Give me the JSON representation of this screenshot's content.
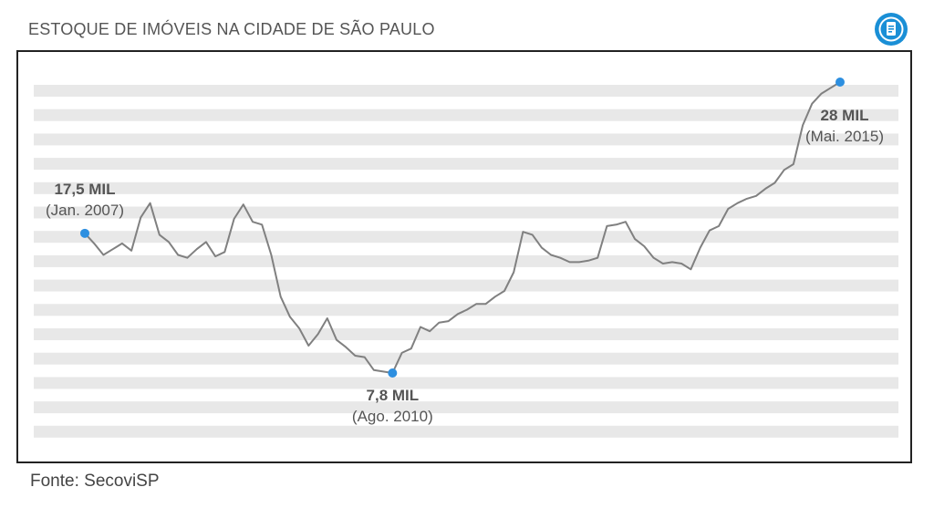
{
  "header": {
    "title": "ESTOQUE DE IMÓVEIS NA CIDADE DE SÃO PAULO",
    "logo_icon": "info-document-icon",
    "logo_color": "#1a8fd6"
  },
  "footer": {
    "source": "Fonte: SecoviSP"
  },
  "chart_data": {
    "type": "line",
    "line_color": "#808080",
    "point_color": "#2d8fe0",
    "band_color": "#e8e8e8",
    "ylim": [
      5,
      30
    ],
    "series": [
      {
        "values": [
          17.5,
          16.8,
          16.0,
          16.4,
          16.8,
          16.3,
          18.6,
          19.6,
          17.4,
          16.9,
          16.0,
          15.8,
          16.4,
          16.9,
          15.9,
          16.2,
          18.5,
          19.5,
          18.3,
          18.1,
          16.0,
          13.1,
          11.7,
          10.9,
          9.7,
          10.5,
          11.6,
          10.1,
          9.6,
          9.0,
          8.9,
          8.0,
          7.9,
          7.8,
          9.2,
          9.5,
          11.0,
          10.7,
          11.3,
          11.4,
          11.9,
          12.2,
          12.6,
          12.6,
          13.1,
          13.5,
          14.8,
          17.6,
          17.4,
          16.5,
          16.0,
          15.8,
          15.5,
          15.5,
          15.6,
          15.8,
          18.0,
          18.1,
          18.3,
          17.1,
          16.6,
          15.8,
          15.4,
          15.5,
          15.4,
          15.0,
          16.5,
          17.7,
          18.0,
          19.2,
          19.6,
          19.9,
          20.1,
          20.6,
          21.0,
          21.9,
          22.3,
          25.0,
          26.5,
          27.2,
          27.6,
          28.0
        ]
      }
    ],
    "annotations": [
      {
        "index": 0,
        "value_label": "17,5 MIL",
        "date_label": "(Jan. 2007)",
        "position": "above-left"
      },
      {
        "index": 33,
        "value_label": "7,8 MIL",
        "date_label": "(Ago. 2010)",
        "position": "below"
      },
      {
        "index": 81,
        "value_label": "28 MIL",
        "date_label": "(Mai. 2015)",
        "position": "below-right"
      }
    ],
    "grid": true,
    "legend": "none"
  }
}
